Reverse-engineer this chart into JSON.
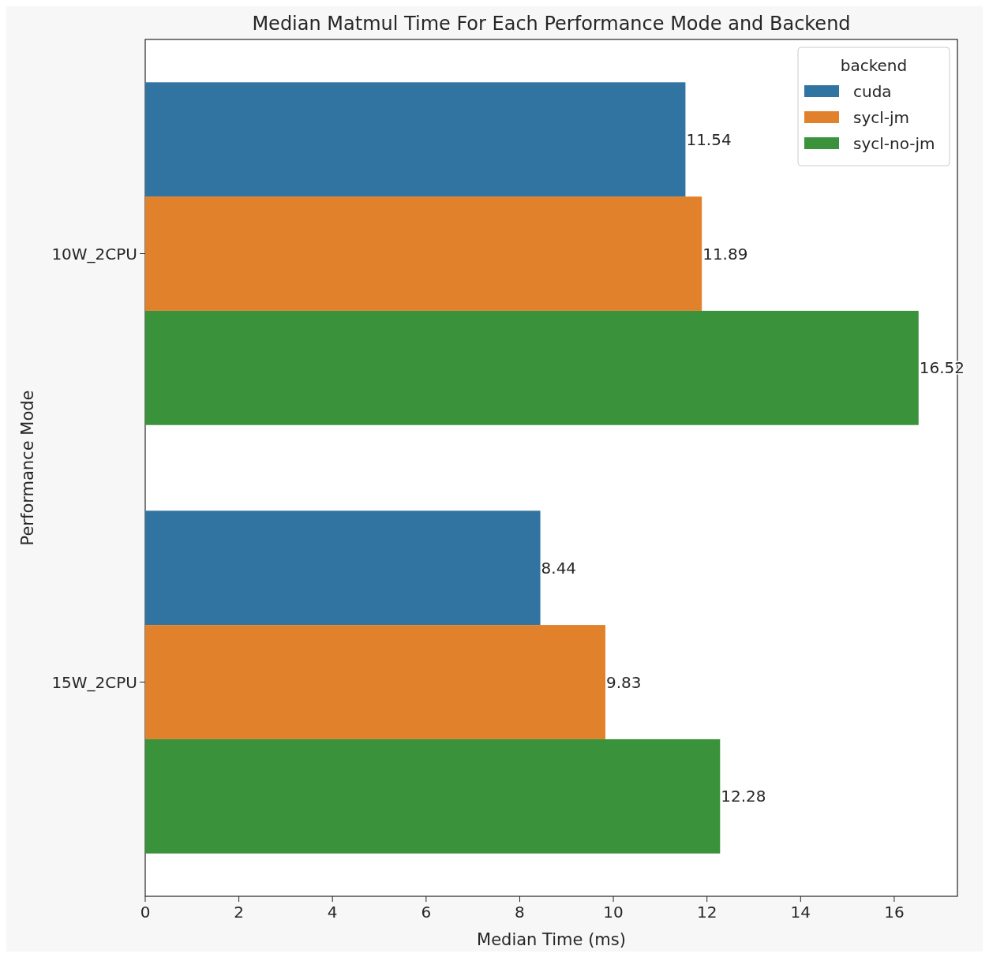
{
  "chart_data": {
    "type": "bar",
    "orientation": "horizontal",
    "title": "Median Matmul Time For Each Performance Mode and Backend",
    "xlabel": "Median Time (ms)",
    "ylabel": "Performance Mode",
    "legend_title": "backend",
    "legend": "top right",
    "categories": [
      "10W_2CPU",
      "15W_2CPU"
    ],
    "series": [
      {
        "name": "cuda",
        "color": "#3274a1",
        "values": [
          11.54,
          8.44
        ]
      },
      {
        "name": "sycl-jm",
        "color": "#e1812c",
        "values": [
          11.89,
          9.83
        ]
      },
      {
        "name": "sycl-no-jm",
        "color": "#3a923a",
        "values": [
          16.52,
          12.28
        ]
      }
    ],
    "xlim": [
      0,
      17.35
    ],
    "xticks": [
      0,
      2,
      4,
      6,
      8,
      10,
      12,
      14,
      16
    ],
    "data_labels": true
  }
}
